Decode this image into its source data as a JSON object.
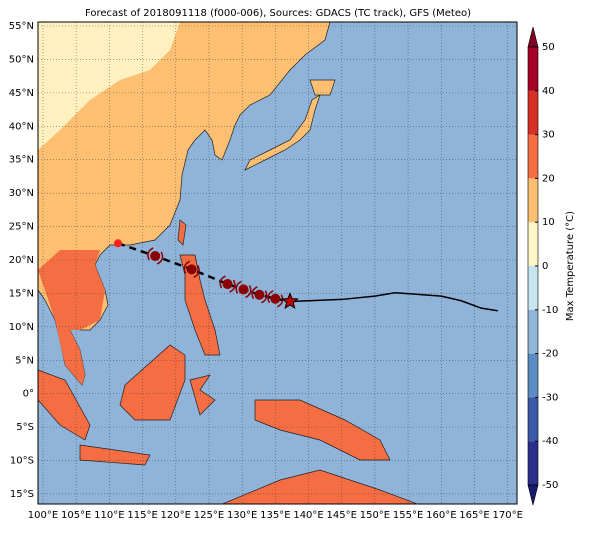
{
  "title": "Forecast of 2018091118 (f000-006), Sources: GDACS (TC track), GFS (Meteo)",
  "map": {
    "lonlim": [
      99.25,
      171.4
    ],
    "latlim": [
      -16.5,
      55.6
    ],
    "lonticks": [
      {
        "value": 100,
        "label": "100°E"
      },
      {
        "value": 105,
        "label": "105°E"
      },
      {
        "value": 110,
        "label": "110°E"
      },
      {
        "value": 115,
        "label": "115°E"
      },
      {
        "value": 120,
        "label": "120°E"
      },
      {
        "value": 125,
        "label": "125°E"
      },
      {
        "value": 130,
        "label": "130°E"
      },
      {
        "value": 135,
        "label": "135°E"
      },
      {
        "value": 140,
        "label": "140°E"
      },
      {
        "value": 145,
        "label": "145°E"
      },
      {
        "value": 150,
        "label": "150°E"
      },
      {
        "value": 155,
        "label": "155°E"
      },
      {
        "value": 160,
        "label": "160°E"
      },
      {
        "value": 165,
        "label": "165°E"
      },
      {
        "value": 170,
        "label": "170°E"
      }
    ],
    "latticks": [
      {
        "value": 55,
        "label": "55°N"
      },
      {
        "value": 50,
        "label": "50°N"
      },
      {
        "value": 45,
        "label": "45°N"
      },
      {
        "value": 40,
        "label": "40°N"
      },
      {
        "value": 35,
        "label": "35°N"
      },
      {
        "value": 30,
        "label": "30°N"
      },
      {
        "value": 25,
        "label": "25°N"
      },
      {
        "value": 20,
        "label": "20°N"
      },
      {
        "value": 15,
        "label": "15°N"
      },
      {
        "value": 10,
        "label": "10°N"
      },
      {
        "value": 5,
        "label": "5°N"
      },
      {
        "value": 0,
        "label": "0°"
      },
      {
        "value": -5,
        "label": "5°S"
      },
      {
        "value": -10,
        "label": "10°S"
      },
      {
        "value": -15,
        "label": "15°S"
      }
    ]
  },
  "track": {
    "forecast_lon": [
      111.3,
      116.9,
      122.4,
      127.8,
      130.2,
      132.6,
      135.0
    ],
    "forecast_lat": [
      22.5,
      20.6,
      18.6,
      16.4,
      15.6,
      14.8,
      14.2
    ],
    "current_lon": 137.2,
    "current_lat": 13.8,
    "past_lon": [
      137.2,
      140.0,
      145.0,
      150.0,
      153.0,
      156.0,
      160.0,
      163.0,
      166.0,
      168.5
    ],
    "past_lat": [
      13.8,
      13.9,
      14.1,
      14.6,
      15.1,
      14.9,
      14.6,
      13.9,
      12.8,
      12.4
    ]
  },
  "colorbar": {
    "label": "Max Temperature (°C)",
    "lim": [
      -50,
      50
    ],
    "ticks": [
      -50,
      -40,
      -30,
      -20,
      -10,
      0,
      10,
      20,
      30,
      40,
      50
    ],
    "colors": [
      "#2b2f8c",
      "#3a5aa8",
      "#5b8cc3",
      "#8fb6d9",
      "#c8e4f0",
      "#fff6c8",
      "#fdbf71",
      "#f46d43",
      "#d73027",
      "#a50026"
    ]
  }
}
